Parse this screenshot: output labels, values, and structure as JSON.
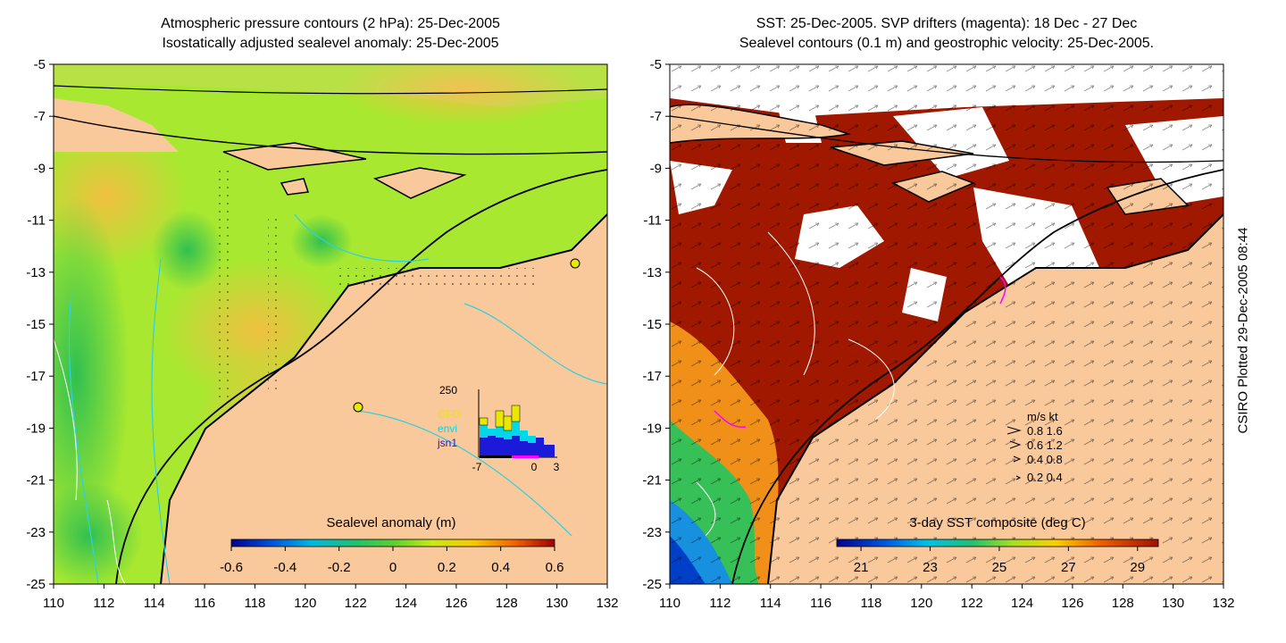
{
  "left_panel": {
    "title_line1": "Atmospheric pressure contours (2 hPa): 25-Dec-2005",
    "title_line2": "Isostatically adjusted sealevel anomaly: 25-Dec-2005",
    "colorbar_label": "Sealevel anomaly (m)",
    "colorbar_ticks": [
      "-0.6",
      "-0.4",
      "-0.2",
      "0",
      "0.2",
      "0.4",
      "0.6"
    ],
    "inset": {
      "ymax_label": "250",
      "legend": [
        {
          "name": "GFO",
          "color": "#e8e800"
        },
        {
          "name": "envi",
          "color": "#00d8e8"
        },
        {
          "name": "jsn1",
          "color": "#1a1ad8"
        }
      ],
      "xticks": [
        "-7",
        "0",
        "3"
      ]
    }
  },
  "right_panel": {
    "title_line1": "SST: 25-Dec-2005. SVP drifters (magenta): 18 Dec - 27 Dec",
    "title_line2": "Sealevel contours (0.1 m) and geostrophic velocity: 25-Dec-2005.",
    "colorbar_label": "3-day SST composite (deg C)",
    "colorbar_ticks": [
      "21",
      "23",
      "25",
      "27",
      "29"
    ],
    "velocity_legend": {
      "header": "m/s  kt",
      "rows": [
        "0.8  1.6",
        "0.6  1.2",
        "0.4  0.8",
        "0.2  0.4"
      ]
    }
  },
  "axes": {
    "y_ticks": [
      "-5",
      "-7",
      "-9",
      "-11",
      "-13",
      "-15",
      "-17",
      "-19",
      "-21",
      "-23",
      "-25"
    ],
    "x_ticks": [
      "110",
      "112",
      "114",
      "116",
      "118",
      "120",
      "122",
      "124",
      "126",
      "128",
      "130",
      "132"
    ]
  },
  "credit": "CSIRO Plotted 29-Dec-2005 08:44",
  "colors": {
    "land": "#f9c89b",
    "sst_warm": "#a01800",
    "sla_green": "#a8e830",
    "coast": "#000000",
    "contour": "#30d0e0"
  }
}
